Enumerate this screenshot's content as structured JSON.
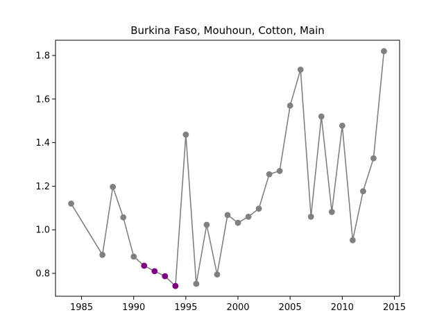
{
  "chart_data": {
    "type": "line",
    "title": "Burkina Faso, Mouhoun, Cotton, Main",
    "xlabel": "",
    "ylabel": "",
    "xlim": [
      1982.5,
      2015.5
    ],
    "ylim": [
      0.695,
      1.87
    ],
    "x_ticks": [
      1985,
      1990,
      1995,
      2000,
      2005,
      2010,
      2015
    ],
    "y_ticks": [
      0.8,
      1.0,
      1.2,
      1.4,
      1.6,
      1.8
    ],
    "grid": false,
    "legend": "none",
    "line_color": "#808080",
    "point_color": "#808080",
    "highlight_color": "#800080",
    "series": [
      {
        "points": [
          {
            "x": 1984,
            "y": 1.12
          },
          {
            "x": 1987,
            "y": 0.885
          },
          {
            "x": 1988,
            "y": 1.197
          },
          {
            "x": 1989,
            "y": 1.057
          },
          {
            "x": 1990,
            "y": 0.877
          },
          {
            "x": 1991,
            "y": 0.835,
            "highlight": true
          },
          {
            "x": 1992,
            "y": 0.81,
            "highlight": true
          },
          {
            "x": 1993,
            "y": 0.787,
            "highlight": true
          },
          {
            "x": 1994,
            "y": 0.742,
            "highlight": true
          },
          {
            "x": 1995,
            "y": 1.437
          },
          {
            "x": 1996,
            "y": 0.752
          },
          {
            "x": 1997,
            "y": 1.023
          },
          {
            "x": 1998,
            "y": 0.795
          },
          {
            "x": 1999,
            "y": 1.068
          },
          {
            "x": 2000,
            "y": 1.032
          },
          {
            "x": 2001,
            "y": 1.06
          },
          {
            "x": 2002,
            "y": 1.097
          },
          {
            "x": 2003,
            "y": 1.255
          },
          {
            "x": 2004,
            "y": 1.27
          },
          {
            "x": 2005,
            "y": 1.57
          },
          {
            "x": 2006,
            "y": 1.735
          },
          {
            "x": 2007,
            "y": 1.06
          },
          {
            "x": 2008,
            "y": 1.52
          },
          {
            "x": 2009,
            "y": 1.082
          },
          {
            "x": 2010,
            "y": 1.478
          },
          {
            "x": 2011,
            "y": 0.952
          },
          {
            "x": 2012,
            "y": 1.177
          },
          {
            "x": 2013,
            "y": 1.328
          },
          {
            "x": 2014,
            "y": 1.82
          }
        ]
      }
    ]
  }
}
